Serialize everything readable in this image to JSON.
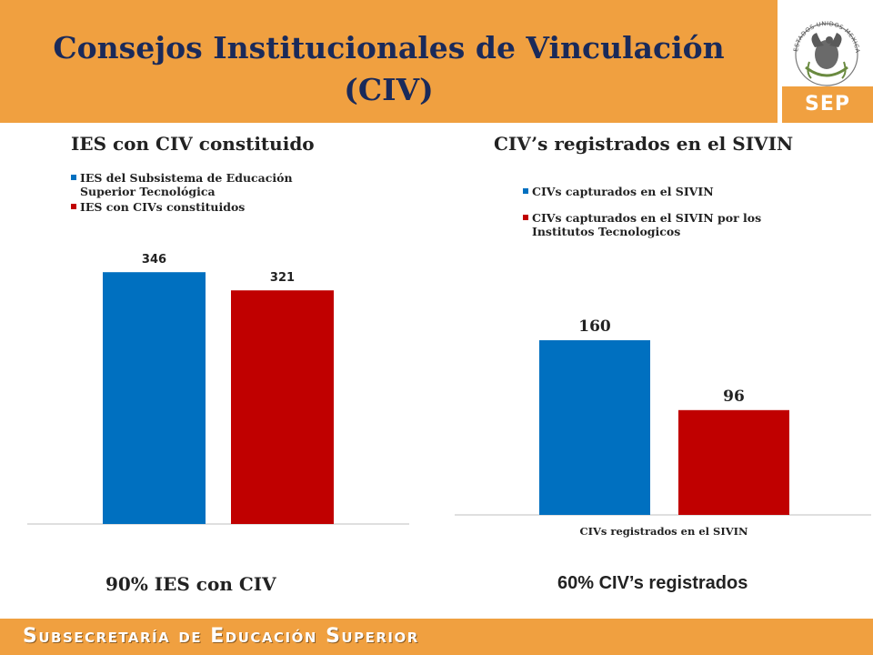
{
  "header": {
    "title_line1": "Consejos Institucionales de Vinculación",
    "title_line2": "(CIV)",
    "seal_text": "ESTADOS UNIDOS MEXICANOS",
    "logo_text": "SEP"
  },
  "colors": {
    "orange": "#F0A040",
    "blue": "#0070C0",
    "red": "#C00000",
    "title": "#1a2a5a"
  },
  "chart_data": [
    {
      "type": "bar",
      "title": "IES con CIV constituido",
      "series": [
        {
          "name": "IES del Subsistema de Educación Superior Tecnológica",
          "values": [
            346
          ]
        },
        {
          "name": "IES con CIVs constituidos",
          "values": [
            321
          ]
        }
      ],
      "data_labels": [
        "346",
        "321"
      ],
      "ylim": [
        0,
        380
      ],
      "grid": false,
      "legend": "top-left"
    },
    {
      "type": "bar",
      "title": "CIV’s registrados en el SIVIN",
      "categories": [
        "CIVs registrados en el SIVIN"
      ],
      "series": [
        {
          "name": "CIVs capturados en el SIVIN",
          "values": [
            160
          ]
        },
        {
          "name": "CIVs capturados en el SIVIN por los Institutos Tecnologicos",
          "values": [
            96
          ]
        }
      ],
      "data_labels": [
        "160",
        "96"
      ],
      "ylim": [
        0,
        320
      ],
      "grid": false,
      "legend": "top-left"
    }
  ],
  "summary": {
    "left": "90%  IES con CIV",
    "right": "60% CIV’s registrados"
  },
  "footer": {
    "text": "Subsecretaría de Educación Superior"
  }
}
